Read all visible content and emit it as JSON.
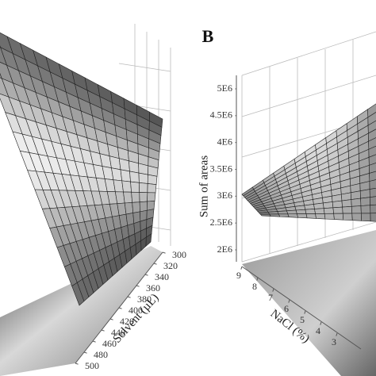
{
  "chart_data": [
    {
      "type": "surface",
      "xlabel": "Solvent (µL)",
      "xlim": [
        300,
        500
      ],
      "xticks": [
        300,
        320,
        340,
        360,
        380,
        400,
        420,
        440,
        460,
        480,
        500
      ]
    },
    {
      "type": "surface",
      "panel_label": "B",
      "zlabel": "Sum of areas",
      "xlabel": "NaCl (%)",
      "zlim": [
        2000000,
        5000000
      ],
      "zticks": [
        {
          "value": 2000000,
          "label": "2E6"
        },
        {
          "value": 2500000,
          "label": "2.5E6"
        },
        {
          "value": 3000000,
          "label": "3E6"
        },
        {
          "value": 3500000,
          "label": "3.5E6"
        },
        {
          "value": 4000000,
          "label": "4E6"
        },
        {
          "value": 4500000,
          "label": "4.5E6"
        },
        {
          "value": 5000000,
          "label": "5E6"
        }
      ],
      "xlim": [
        9,
        3
      ],
      "xticks": [
        9,
        8,
        7,
        6,
        5,
        4,
        3
      ]
    }
  ]
}
